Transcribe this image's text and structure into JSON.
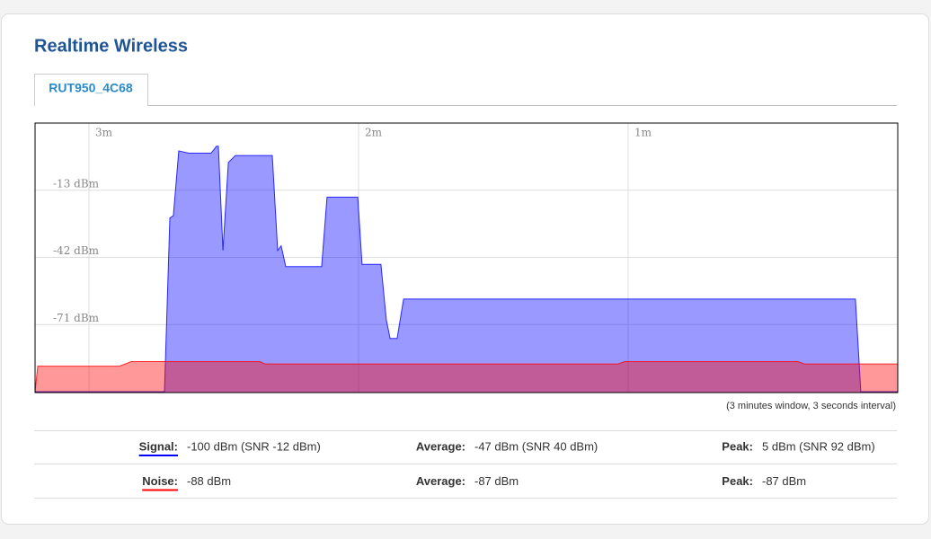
{
  "header": {
    "title": "Realtime Wireless",
    "tab": "RUT950_4C68"
  },
  "chart_data": {
    "type": "area",
    "xlim": [
      3.2,
      0
    ],
    "xticks": [
      {
        "value": 3,
        "label": "3m"
      },
      {
        "value": 2,
        "label": "2m"
      },
      {
        "value": 1,
        "label": "1m"
      }
    ],
    "ylim": [
      -100,
      16
    ],
    "yticks": [
      {
        "value": -13,
        "label": "-13 dBm"
      },
      {
        "value": -42,
        "label": "-42 dBm"
      },
      {
        "value": -71,
        "label": "-71 dBm"
      }
    ],
    "grid": true,
    "note": "(3 minutes window, 3 seconds interval)",
    "series": [
      {
        "name": "Signal:",
        "color": "#0000ff",
        "x": [
          3.2,
          2.72,
          2.7,
          2.687,
          2.667,
          2.63,
          2.547,
          2.527,
          2.52,
          2.503,
          2.483,
          2.457,
          2.32,
          2.3,
          2.287,
          2.27,
          2.137,
          2.117,
          2.003,
          1.987,
          1.917,
          1.897,
          1.883,
          1.857,
          1.833,
          0.157,
          0.137,
          0
        ],
        "values": [
          -100,
          -100,
          -25,
          -24,
          4,
          3,
          3,
          6,
          6,
          -39,
          -1,
          2,
          2,
          -39,
          -37,
          -46,
          -46,
          -16,
          -16,
          -45,
          -45,
          -69,
          -77,
          -77,
          -60,
          -60,
          -100,
          -100
        ]
      },
      {
        "name": "Noise:",
        "color": "#ff0000",
        "x": [
          3.2,
          3.19,
          2.887,
          2.843,
          2.367,
          2.347,
          1.037,
          1.013,
          0.37,
          0.347,
          0
        ],
        "values": [
          -100,
          -89,
          -89,
          -87,
          -87,
          -88,
          -88,
          -87,
          -87,
          -88,
          -88
        ]
      }
    ]
  },
  "stats": {
    "rows": [
      {
        "current": "-100 dBm (SNR -12 dBm)",
        "average_label": "Average:",
        "average": "-47 dBm (SNR 40 dBm)",
        "peak_label": "Peak:",
        "peak": "5 dBm (SNR 92 dBm)"
      },
      {
        "current": "-88 dBm",
        "average_label": "Average:",
        "average": "-87 dBm",
        "peak_label": "Peak:",
        "peak": "-87 dBm"
      }
    ]
  }
}
